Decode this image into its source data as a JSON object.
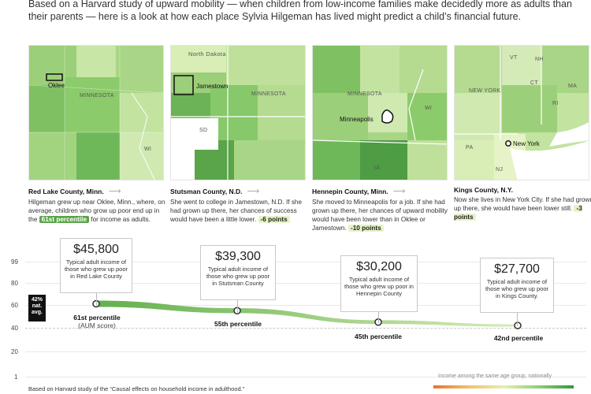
{
  "intro": "Based on a Harvard study of upward mobility — when children from low-income families make decidedly more as adults than their parents — here is a look at how each place Sylvia Hilgeman has lived might predict a child’s financial future.",
  "maps": [
    {
      "labels": [
        "Oklee",
        "MINNESOTA",
        "WI"
      ]
    },
    {
      "labels": [
        "North Dakota",
        "Jamestown",
        "MINNESOTA",
        "SD"
      ]
    },
    {
      "labels": [
        "MINNESOTA",
        "Minneapolis",
        "WI",
        "IA"
      ]
    },
    {
      "labels": [
        "VT",
        "NH",
        "NEW YORK",
        "CT",
        "RI",
        "MA",
        "PA",
        "New York",
        "NJ"
      ]
    }
  ],
  "columns": [
    {
      "title": "Red Lake County, Minn.",
      "body": "Hilgeman grew up near Oklee, Minn., where, on average, children who grow up poor end up in the",
      "highlight": "61st percentile",
      "body_after": "for income as adults."
    },
    {
      "title": "Stutsman County, N.D.",
      "body": "She went to college in Jamestown, N.D. If she had grown up there, her chances of success would have been a little lower.",
      "highlight": "-6 points",
      "body_after": ""
    },
    {
      "title": "Hennepin County, Minn.",
      "body": "She moved to Minneapolis for a job. If she had grown up there, her chances of upward mobility would have been lower than in Oklee or Jamestown.",
      "highlight": "-10 points",
      "body_after": ""
    },
    {
      "title": "Kings County, N.Y.",
      "body": "Now she lives in New York City. If she had grown up there, she would have been lower still.",
      "highlight": "-3 points",
      "body_after": ""
    }
  ],
  "chart_data": {
    "type": "line",
    "y_ticks": [
      "99",
      "80",
      "60",
      "40",
      "20",
      "1"
    ],
    "ylim": [
      1,
      99
    ],
    "national_avg_label": [
      "42%",
      "nat.",
      "avg."
    ],
    "national_avg": 42,
    "points": [
      {
        "county": "Red Lake County",
        "percentile": 61,
        "label": "61st percentile",
        "sublabel": "(AUM score)",
        "income": "$45,800",
        "desc": "Typical adult income of those who grew up poor in Red Lake County"
      },
      {
        "county": "Stutsman County",
        "percentile": 55,
        "label": "55th percentile",
        "sublabel": "",
        "income": "$39,300",
        "desc": "Typical adult income of those who grew up poor in Stutsman County"
      },
      {
        "county": "Hennepin County",
        "percentile": 45,
        "label": "45th percentile",
        "sublabel": "",
        "income": "$30,200",
        "desc": "Typical adult income of those who grew up poor in Hennepin County"
      },
      {
        "county": "Kings County",
        "percentile": 42,
        "label": "42nd percentile",
        "sublabel": "",
        "income": "$27,700",
        "desc": "Typical adult income of those who grew up poor in Kings County."
      }
    ],
    "legend_text": "Income among the same age group, nationally",
    "colors": {
      "line_start": "#62b04e",
      "line_end": "#d6ecb4",
      "point_fill": "#ffffff",
      "point_stroke": "#222222"
    }
  },
  "footnote": "Based on Harvard study of the “Causal effects on household income in adulthood.”"
}
